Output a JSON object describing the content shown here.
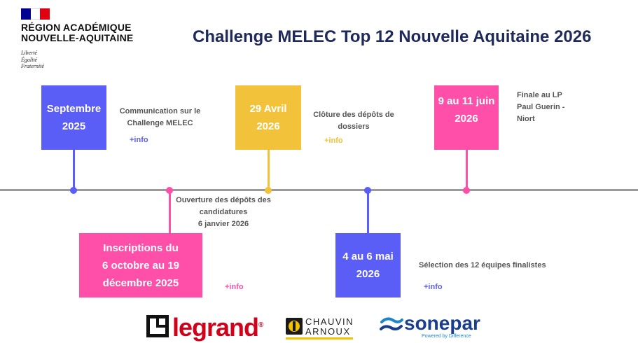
{
  "header": {
    "region_line1": "RÉGION ACADÉMIQUE",
    "region_line2": "NOUVELLE-AQUITAINE",
    "motto": [
      "Liberté",
      "Égalité",
      "Fraternité"
    ],
    "title": "Challenge MELEC Top 12 Nouvelle Aquitaine 2026"
  },
  "colors": {
    "blue": "#5b5ef6",
    "yellow": "#f2c33a",
    "pink": "#ff4fa8",
    "axis": "#9a9a9a",
    "title": "#1f2a5a"
  },
  "events": [
    {
      "id": "septembre",
      "lines": [
        "Septembre",
        "2025"
      ],
      "desc": [
        "Communication sur le",
        "Challenge MELEC"
      ],
      "info": "+info",
      "color": "blue"
    },
    {
      "id": "inscriptions",
      "lines": [
        "Inscriptions du",
        "6 octobre au 19",
        "décembre 2025"
      ],
      "desc": [
        "Ouverture des dépôts des",
        "candidatures",
        "6 janvier 2026"
      ],
      "info": "+info",
      "color": "pink"
    },
    {
      "id": "avril",
      "lines": [
        "29 Avril",
        "2026"
      ],
      "desc": [
        "Clôture des dépôts de",
        "dossiers"
      ],
      "info": "+info",
      "color": "yellow"
    },
    {
      "id": "mai",
      "lines": [
        "4 au 6 mai",
        "2026"
      ],
      "desc": [
        "Sélection des 12 équipes finalistes"
      ],
      "info": "+info",
      "color": "blue"
    },
    {
      "id": "juin",
      "lines": [
        "9 au 11 juin",
        "2026"
      ],
      "desc": [
        "Finale au LP",
        "Paul Guerin -",
        "Niort"
      ],
      "info": "",
      "color": "pink"
    }
  ],
  "partners": {
    "legrand": "legrand",
    "legrand_reg": "®",
    "chauvin_line1": "CHAUVIN",
    "chauvin_line2": "ARNOUX",
    "sonepar": "sonepar",
    "sonepar_sub": "Powered by Difference"
  }
}
